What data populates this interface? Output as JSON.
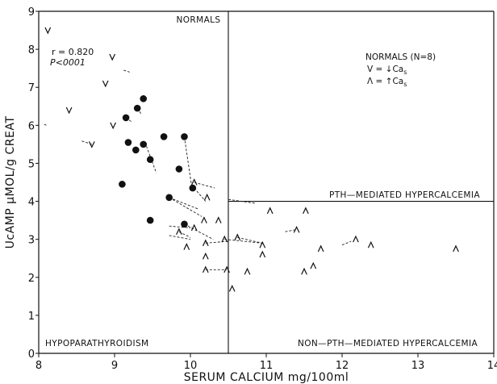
{
  "chart_data": {
    "type": "scatter",
    "title": "",
    "xlabel": "SERUM CALCIUM mg/100ml",
    "ylabel": "UcAMP μMOL/g CREAT",
    "xlim": [
      8,
      14
    ],
    "ylim": [
      0,
      9
    ],
    "x_ticks": [
      8,
      9,
      10,
      11,
      12,
      13,
      14
    ],
    "y_ticks": [
      0,
      1,
      2,
      3,
      4,
      5,
      6,
      7,
      8,
      9
    ],
    "x_tick_labels": [
      "8",
      "9",
      "10",
      "11",
      "12",
      "13",
      "14"
    ],
    "y_tick_labels": [
      "0",
      "1",
      "2",
      "3",
      "4",
      "5",
      "6",
      "7",
      "8",
      "9"
    ],
    "grid": false,
    "boundaries": {
      "x": 10.5,
      "y_right": 4.0
    },
    "regions": {
      "normals": "NORMALS",
      "pth": "PTH—MEDIATED HYPERCALCEMIA",
      "hypo": "HYPOPARATHYROIDISM",
      "non_pth": "NON—PTH—MEDIATED HYPERCALCEMIA"
    },
    "stats": {
      "r": "r = 0.820",
      "p": "P<0001"
    },
    "legend": {
      "title": "NORMALS (N=8)",
      "v_label": "V = ↓Ca",
      "a_label": "Λ = ↑Ca",
      "sub": "s",
      "placement": "top-right"
    },
    "series": [
      {
        "marker": "filled-circle",
        "points": [
          [
            9.15,
            6.2
          ],
          [
            9.3,
            6.45
          ],
          [
            9.38,
            6.7
          ],
          [
            9.18,
            5.55
          ],
          [
            9.28,
            5.35
          ],
          [
            9.38,
            5.5
          ],
          [
            9.47,
            5.1
          ],
          [
            9.65,
            5.7
          ],
          [
            9.92,
            5.7
          ],
          [
            9.85,
            4.85
          ],
          [
            10.03,
            4.35
          ],
          [
            9.72,
            4.1
          ],
          [
            9.1,
            4.45
          ],
          [
            9.47,
            3.5
          ],
          [
            9.92,
            3.4
          ]
        ]
      },
      {
        "marker": "v",
        "points": [
          [
            8.12,
            8.5
          ],
          [
            8.4,
            6.4
          ],
          [
            8.7,
            5.5
          ],
          [
            8.88,
            7.1
          ],
          [
            8.97,
            7.8
          ],
          [
            8.98,
            6.0
          ]
        ]
      },
      {
        "marker": "caret",
        "points": [
          [
            10.05,
            4.5
          ],
          [
            10.22,
            4.1
          ],
          [
            10.18,
            3.5
          ],
          [
            10.37,
            3.5
          ],
          [
            10.05,
            3.3
          ],
          [
            9.85,
            3.2
          ],
          [
            9.95,
            2.8
          ],
          [
            10.2,
            2.9
          ],
          [
            10.2,
            2.55
          ],
          [
            10.2,
            2.2
          ],
          [
            10.45,
            3.0
          ],
          [
            10.62,
            3.05
          ],
          [
            10.48,
            2.2
          ],
          [
            10.75,
            2.15
          ],
          [
            10.95,
            2.85
          ],
          [
            10.95,
            2.6
          ],
          [
            11.05,
            3.75
          ],
          [
            11.52,
            3.75
          ],
          [
            11.4,
            3.25
          ],
          [
            11.5,
            2.15
          ],
          [
            11.62,
            2.3
          ],
          [
            11.72,
            2.75
          ],
          [
            12.18,
            3.0
          ],
          [
            12.38,
            2.85
          ],
          [
            13.5,
            2.75
          ],
          [
            10.55,
            1.7
          ]
        ]
      }
    ],
    "connectors": [
      [
        [
          8.1,
          6.0
        ],
        [
          8.05,
          6.05
        ]
      ],
      [
        [
          8.7,
          5.5
        ],
        [
          8.55,
          5.6
        ]
      ],
      [
        [
          9.12,
          7.45
        ],
        [
          9.2,
          7.4
        ]
      ],
      [
        [
          9.15,
          6.2
        ],
        [
          9.22,
          6.1
        ]
      ],
      [
        [
          9.3,
          6.45
        ],
        [
          9.35,
          6.3
        ]
      ],
      [
        [
          9.42,
          5.45
        ],
        [
          9.55,
          4.75
        ]
      ],
      [
        [
          9.92,
          5.7
        ],
        [
          10.02,
          4.35
        ]
      ],
      [
        [
          10.05,
          4.5
        ],
        [
          10.32,
          4.35
        ]
      ],
      [
        [
          10.05,
          4.35
        ],
        [
          10.2,
          4.0
        ]
      ],
      [
        [
          9.72,
          4.1
        ],
        [
          10.1,
          3.8
        ]
      ],
      [
        [
          9.72,
          4.1
        ],
        [
          10.15,
          3.6
        ]
      ],
      [
        [
          9.85,
          3.2
        ],
        [
          10.0,
          3.05
        ]
      ],
      [
        [
          9.72,
          3.35
        ],
        [
          10.0,
          3.3
        ]
      ],
      [
        [
          9.72,
          3.1
        ],
        [
          10.0,
          3.0
        ]
      ],
      [
        [
          9.92,
          3.4
        ],
        [
          10.3,
          3.0
        ]
      ],
      [
        [
          10.2,
          2.2
        ],
        [
          10.48,
          2.2
        ]
      ],
      [
        [
          10.2,
          2.9
        ],
        [
          10.5,
          2.95
        ]
      ],
      [
        [
          10.45,
          3.0
        ],
        [
          10.95,
          2.9
        ]
      ],
      [
        [
          10.62,
          3.05
        ],
        [
          10.95,
          2.9
        ]
      ],
      [
        [
          10.5,
          4.05
        ],
        [
          10.85,
          3.95
        ]
      ],
      [
        [
          11.25,
          3.2
        ],
        [
          11.38,
          3.25
        ]
      ],
      [
        [
          12.0,
          2.85
        ],
        [
          12.12,
          2.95
        ]
      ]
    ]
  }
}
